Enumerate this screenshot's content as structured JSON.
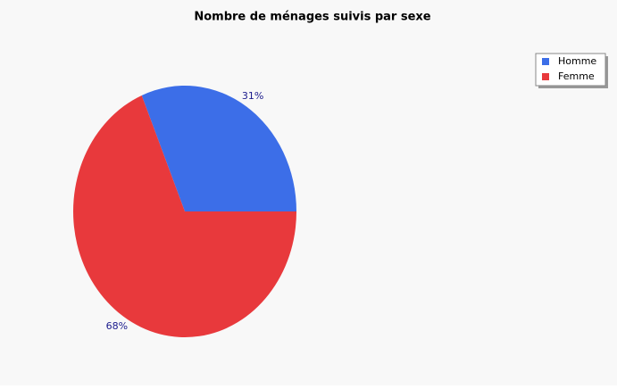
{
  "chart_data": {
    "type": "pie",
    "title": "Nombre de ménages suivis par sexe",
    "categories": [
      "Homme",
      "Femme"
    ],
    "values": [
      31,
      68
    ],
    "value_labels": [
      "31%",
      "68%"
    ],
    "colors": [
      "#3c6ee8",
      "#e8393c"
    ],
    "legend": "top-right"
  }
}
